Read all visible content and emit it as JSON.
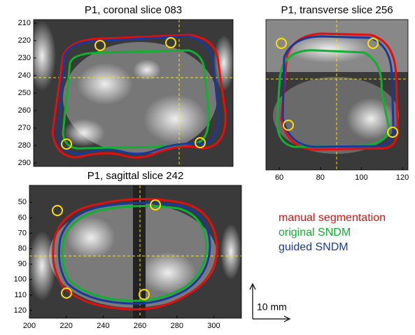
{
  "panels": [
    {
      "title": "P1, coronal slice 083",
      "ylim": [
        208,
        292
      ],
      "yticks": [
        210,
        220,
        230,
        240,
        250,
        260,
        270,
        280,
        290
      ]
    },
    {
      "title": "P1, transverse slice 256",
      "xlim": [
        53.5,
        122.7
      ],
      "xticks": [
        60,
        80,
        100,
        120
      ]
    },
    {
      "title": "P1, sagittal slice 242",
      "xlim": [
        200,
        315
      ],
      "ylim": [
        39,
        125
      ],
      "xticks": [
        200,
        220,
        240,
        260,
        280,
        300
      ],
      "yticks": [
        50,
        60,
        70,
        80,
        90,
        100,
        110,
        120
      ]
    }
  ],
  "legend": [
    {
      "label": "manual segmentation",
      "color": "#e01010"
    },
    {
      "label": "original SNDM",
      "color": "#10b030"
    },
    {
      "label": "guided SNDM",
      "color": "#1a3a9a"
    }
  ],
  "scale_bar": "10 mm"
}
